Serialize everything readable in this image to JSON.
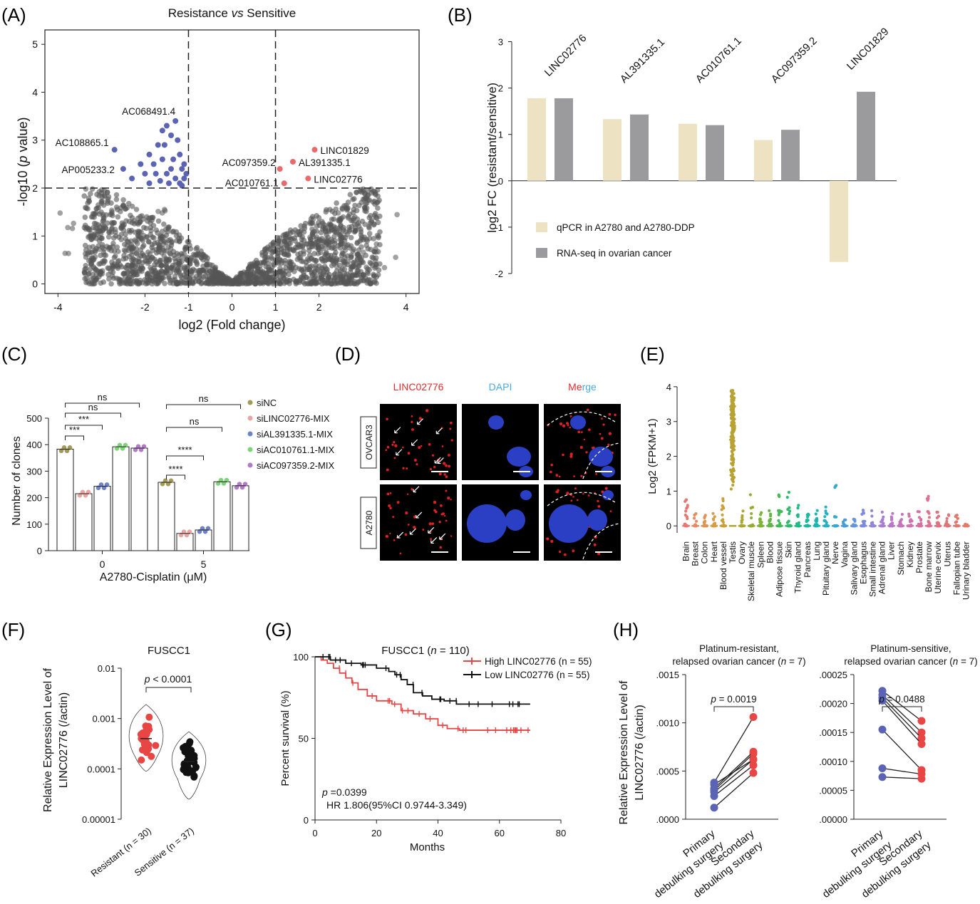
{
  "panels": {
    "A": {
      "letter": "(A)"
    },
    "B": {
      "letter": "(B)"
    },
    "C": {
      "letter": "(C)"
    },
    "D": {
      "letter": "(D)"
    },
    "E": {
      "letter": "(E)"
    },
    "F": {
      "letter": "(F)"
    },
    "G": {
      "letter": "(G)"
    },
    "H": {
      "letter": "(H)"
    }
  },
  "micrographs": {
    "columns": [
      "LINC02776",
      "DAPI",
      "Merge"
    ],
    "column_colors": [
      "#e52a2a",
      "#4aa8e0",
      "#e52a2a"
    ],
    "rows": [
      "OVCAR3",
      "A2780"
    ]
  },
  "chart_data": [
    {
      "panel": "A",
      "type": "scatter",
      "title_prefix": "Resistance ",
      "title_italic": "vs",
      "title_suffix": " Sensitive",
      "xlabel": "log2 (Fold change)",
      "ylabel_prefix": "-log10 (",
      "ylabel_italic": "p",
      "ylabel_suffix": " value)",
      "xlim": [
        -4.3,
        4.3
      ],
      "ylim": [
        -0.2,
        5.3
      ],
      "xticks": [
        -4,
        -2,
        -1,
        0,
        1,
        2,
        4
      ],
      "yticks": [
        0,
        1,
        2,
        3,
        4,
        5
      ],
      "thresholds": {
        "x": [
          -1,
          1
        ],
        "y": 2
      },
      "colors": {
        "ns": "#555555",
        "down": "#5b64b4",
        "up": "#e86a6a"
      },
      "down_points": [
        [
          -2.7,
          2.8
        ],
        [
          -2.5,
          2.4
        ],
        [
          -2.3,
          2.2
        ],
        [
          -2.1,
          2.5
        ],
        [
          -2.0,
          2.3
        ],
        [
          -1.9,
          2.1
        ],
        [
          -1.8,
          2.5
        ],
        [
          -1.7,
          2.9
        ],
        [
          -1.6,
          3.2
        ],
        [
          -1.5,
          3.3
        ],
        [
          -1.4,
          3.1
        ],
        [
          -1.3,
          3.4
        ],
        [
          -1.25,
          3.0
        ],
        [
          -1.2,
          2.7
        ],
        [
          -1.15,
          2.4
        ],
        [
          -1.1,
          2.2
        ],
        [
          -1.6,
          2.6
        ],
        [
          -1.5,
          2.3
        ],
        [
          -1.45,
          2.1
        ],
        [
          -1.35,
          2.6
        ],
        [
          -1.3,
          2.2
        ],
        [
          -1.2,
          2.1
        ],
        [
          -1.1,
          2.5
        ],
        [
          -1.05,
          2.3
        ],
        [
          -1.55,
          2.9
        ],
        [
          -1.75,
          2.3
        ],
        [
          -1.4,
          2.4
        ],
        [
          -1.15,
          2.05
        ],
        [
          -1.65,
          2.15
        ],
        [
          -1.9,
          2.7
        ]
      ],
      "up_points": [
        [
          1.1,
          2.4
        ],
        [
          1.2,
          2.1
        ],
        [
          1.4,
          2.55
        ],
        [
          1.75,
          2.2
        ],
        [
          1.9,
          2.8
        ]
      ],
      "labels": [
        {
          "text": "AC068491.4",
          "x": -1.3,
          "y": 3.4,
          "side": "left"
        },
        {
          "text": "AC108865.1",
          "x": -2.7,
          "y": 2.8,
          "side": "left"
        },
        {
          "text": "AP005233.2",
          "x": -2.5,
          "y": 2.4,
          "side": "left"
        },
        {
          "text": "AC097359.2",
          "x": 1.1,
          "y": 2.4,
          "side": "left"
        },
        {
          "text": "AC010761.1",
          "x": 1.2,
          "y": 2.1,
          "side": "left"
        },
        {
          "text": "AL391335.1",
          "x": 1.4,
          "y": 2.55,
          "side": "right"
        },
        {
          "text": "LINC01829",
          "x": 1.9,
          "y": 2.8,
          "side": "right"
        },
        {
          "text": "LINC02776",
          "x": 1.75,
          "y": 2.2,
          "side": "right"
        }
      ]
    },
    {
      "panel": "B",
      "type": "bar",
      "ylabel": "log2 FC (resistant/sensitive)",
      "ylim": [
        -2.2,
        3.1
      ],
      "yticks": [
        3,
        2,
        1,
        0,
        -1,
        -2
      ],
      "categories": [
        "LINC02776",
        "AL391335.1",
        "AC010761.1",
        "AC097359.2",
        "LINC01829"
      ],
      "series": [
        {
          "name": "qPCR in A2780 and A2780-DDP",
          "color": "#ede3c3",
          "values": [
            1.78,
            1.33,
            1.23,
            0.88,
            -1.75
          ]
        },
        {
          "name": "RNA-seq in ovarian cancer",
          "color": "#9b9b9e",
          "values": [
            1.78,
            1.43,
            1.2,
            1.1,
            1.92
          ]
        }
      ]
    },
    {
      "panel": "C",
      "type": "bar",
      "xlabel": "A2780-Cisplatin (μM)",
      "ylabel": "Number of clones",
      "ylim": [
        0,
        500
      ],
      "yticks": [
        0,
        100,
        200,
        300,
        400,
        500
      ],
      "categories": [
        "0",
        "5"
      ],
      "series": [
        {
          "name": "siNC",
          "color": "#a39a57",
          "values": [
            383,
            258
          ]
        },
        {
          "name": "siLINC02776-MIX",
          "color": "#e8a6a3",
          "values": [
            215,
            65
          ]
        },
        {
          "name": "siAL391335.1-MIX",
          "color": "#6e83c5",
          "values": [
            243,
            78
          ]
        },
        {
          "name": "siAC010761.1-MIX",
          "color": "#7fd37a",
          "values": [
            392,
            260
          ]
        },
        {
          "name": "siAC097359.2-MIX",
          "color": "#b07cc6",
          "values": [
            387,
            245
          ]
        }
      ],
      "significance": [
        {
          "group": 0,
          "to": 1,
          "text": "***"
        },
        {
          "group": 0,
          "to": 2,
          "text": "***"
        },
        {
          "group": 0,
          "to": 3,
          "text": "ns"
        },
        {
          "group": 0,
          "to": 4,
          "text": "ns"
        },
        {
          "group": 1,
          "to": 1,
          "text": "****"
        },
        {
          "group": 1,
          "to": 2,
          "text": "****"
        },
        {
          "group": 1,
          "to": 3,
          "text": "ns"
        },
        {
          "group": 1,
          "to": 4,
          "text": "ns"
        }
      ]
    },
    {
      "panel": "E",
      "type": "scatter",
      "ylabel": "Log2 (FPKM+1)",
      "ylim": [
        -0.2,
        4.1
      ],
      "yticks": [
        0,
        1,
        2,
        3,
        4
      ],
      "categories": [
        "Brain",
        "Breast",
        "Colon",
        "Heart",
        "Blood vessel",
        "Testis",
        "Ovary",
        "Skeletal muscle",
        "Spleen",
        "Blood",
        "Adipose tissue",
        "Skin",
        "Thyroid gland",
        "Pancreas",
        "Lung",
        "Pituitary gland",
        "Nerve",
        "Vagina",
        "Salivary gland",
        "Esophagus",
        "Small intestine",
        "Adrenal gland",
        "Liver",
        "Stomach",
        "Kidney",
        "Prostate",
        "Bone marrow",
        "Uterine cervix",
        "Uterus",
        "Fallopian tube",
        "Urinary bladder"
      ],
      "max_values": [
        0.8,
        0.35,
        0.35,
        0.38,
        0.8,
        3.9,
        0.6,
        0.95,
        0.5,
        0.55,
        0.9,
        1.1,
        0.6,
        0.4,
        0.45,
        0.55,
        1.25,
        0.2,
        0.3,
        0.55,
        0.5,
        0.4,
        0.45,
        0.4,
        0.35,
        0.45,
        0.98,
        0.45,
        0.35,
        0.4,
        0.05
      ],
      "colors": [
        "#e8766f",
        "#e58a62",
        "#df9453",
        "#d79c45",
        "#ca9f3a",
        "#b8a233",
        "#aaa830",
        "#94ad31",
        "#7eb337",
        "#63b646",
        "#45b858",
        "#2fba6e",
        "#1fba86",
        "#18b99c",
        "#1bb5b0",
        "#24b0c1",
        "#35a8cf",
        "#4a9ed8",
        "#6394dc",
        "#7d8bdc",
        "#9483d8",
        "#a77dd0",
        "#b877c7",
        "#c574bc",
        "#cf72ae",
        "#d6719f",
        "#da7290",
        "#dc7482",
        "#dd7677",
        "#de786f",
        "#e07a69"
      ]
    },
    {
      "panel": "F",
      "type": "scatter",
      "title": "FUSCC1",
      "ylabel_line1": "Relative  Expression Level of",
      "ylabel_line2": "LINC02776 (/actin)",
      "yscale": "log",
      "ylim": [
        1e-05,
        0.01
      ],
      "yticks": [
        "0.01",
        "0.001",
        "0.0001",
        "0.00001"
      ],
      "annotation_italic": "p",
      "annotation_text": " < 0.0001",
      "groups": [
        {
          "name": "Resistant",
          "n_label": "(n = 30)",
          "color": "#e84545",
          "n": 30,
          "median": 0.0004,
          "min": 9e-05,
          "max": 0.0019
        },
        {
          "name": "Sensitive",
          "n_label": "(n = 37)",
          "color": "#111111",
          "n": 37,
          "median": 0.00014,
          "min": 2.5e-05,
          "max": 0.00055
        }
      ]
    },
    {
      "panel": "G",
      "type": "line",
      "title_prefix": "FUSCC1 (",
      "title_italic": "n",
      "title_suffix": " = 110)",
      "xlabel": "Months",
      "ylabel": "Percent survival (%)",
      "xlim": [
        0,
        80
      ],
      "ylim": [
        0,
        100
      ],
      "xticks": [
        0,
        20,
        40,
        60,
        80
      ],
      "yticks": [
        0,
        50,
        100
      ],
      "series": [
        {
          "name": "High LINC02776",
          "n_label": "(n = 55)",
          "color": "#e84545",
          "x": [
            0,
            2,
            4,
            6,
            8,
            10,
            12,
            14,
            17,
            20,
            25,
            28,
            32,
            36,
            40,
            43,
            47,
            70
          ],
          "y": [
            100,
            98,
            96,
            93,
            90,
            87,
            84,
            80,
            76,
            73,
            71,
            67,
            65,
            62,
            58,
            56,
            55,
            55
          ]
        },
        {
          "name": "Low LINC02776",
          "n_label": "(n = 55)",
          "color": "#111111",
          "x": [
            0,
            5,
            10,
            15,
            20,
            24,
            26,
            28,
            30,
            32,
            35,
            38,
            42,
            46,
            70
          ],
          "y": [
            100,
            98,
            96,
            95,
            93,
            91,
            89,
            86,
            83,
            78,
            76,
            74,
            73,
            71,
            71
          ]
        }
      ],
      "annotation_italic": "p",
      "annotation_line1": " =0.0399",
      "annotation_line2": "HR 1.806(95%CI 0.9744-3.349)"
    },
    {
      "panel": "H-left",
      "type": "line",
      "title_line1": "Platinum-resistant,",
      "title_line2_prefix": "relapsed ovarian cancer (",
      "title_line2_italic": "n",
      "title_line2_suffix": " = 7)",
      "ylabel_line1": "Relative  Expression Level of",
      "ylabel_line2": "LINC02776 (/actin)",
      "categories": [
        "Primary debulking surgery",
        "Secondary debulking surgery"
      ],
      "ylim": [
        0,
        0.0015
      ],
      "yticks": [
        ".0000",
        ".0005",
        ".0010",
        ".0015"
      ],
      "annotation_italic": "p",
      "annotation_text": " = 0.0019",
      "pairs": [
        [
          0.00012,
          0.00048
        ],
        [
          0.00024,
          0.00056
        ],
        [
          0.00028,
          0.00062
        ],
        [
          0.0003,
          0.00068
        ],
        [
          0.00032,
          0.0007
        ],
        [
          0.00036,
          0.00062
        ],
        [
          0.00038,
          0.00106
        ]
      ]
    },
    {
      "panel": "H-right",
      "type": "line",
      "title_line1": "Platinum-sensitive,",
      "title_line2_prefix": "relapsed ovarian cancer (",
      "title_line2_italic": "n",
      "title_line2_suffix": " = 7)",
      "categories": [
        "Primary debulking surgery",
        "Secondary debulking surgery"
      ],
      "ylim": [
        0,
        0.00025
      ],
      "yticks": [
        ".00000",
        ".00005",
        ".00010",
        ".00015",
        ".00020",
        ".00025"
      ],
      "annotation_italic": "p",
      "annotation_text": " = 0.0488",
      "pairs": [
        [
          0.000222,
          0.00017
        ],
        [
          0.000215,
          0.00015
        ],
        [
          0.00021,
          0.00014
        ],
        [
          0.000205,
          0.00013
        ],
        [
          0.000155,
          8.5e-05
        ],
        [
          8.8e-05,
          7.8e-05
        ],
        [
          7.3e-05,
          7e-05
        ]
      ]
    }
  ]
}
